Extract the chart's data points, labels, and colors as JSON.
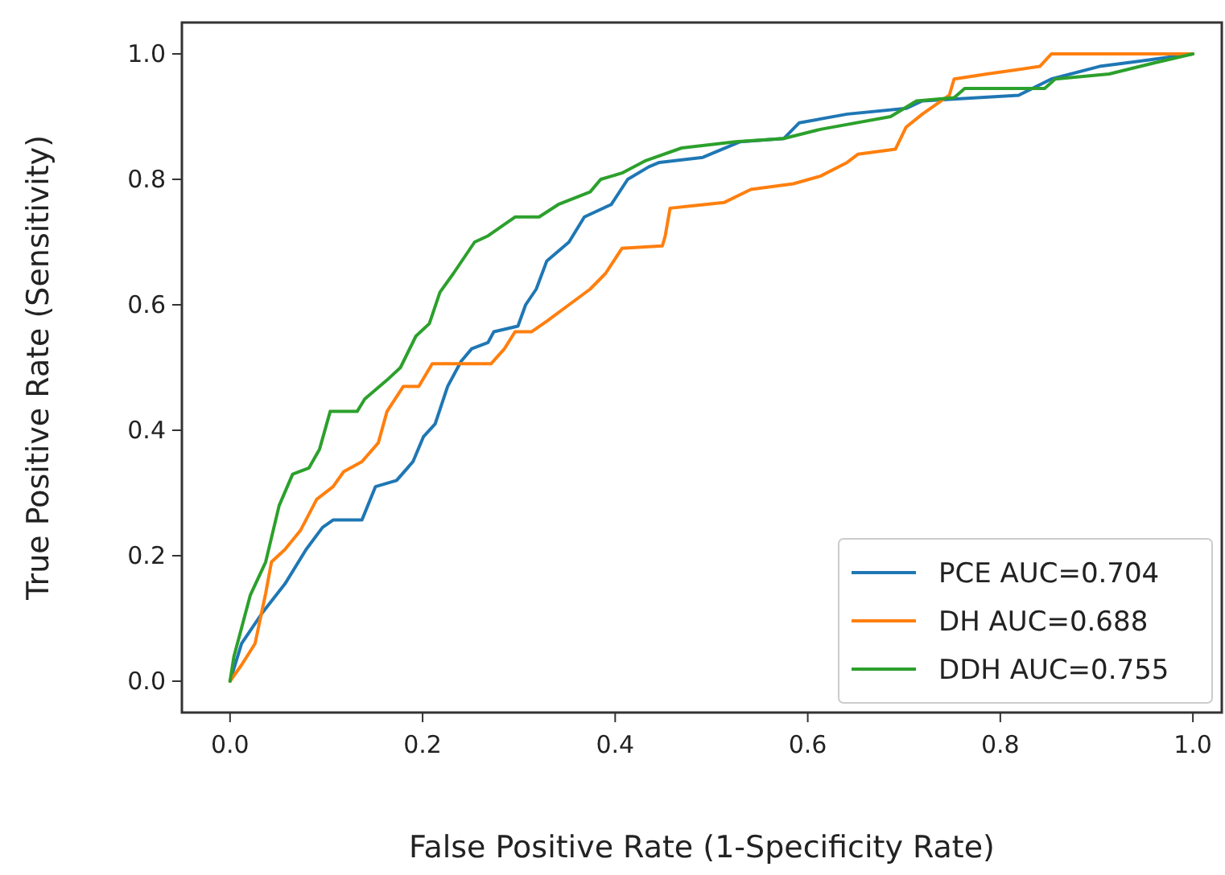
{
  "chart_data": {
    "type": "line",
    "xlabel": "False Positive Rate (1-Specificity Rate)",
    "ylabel": "True Positive Rate (Sensitivity)",
    "xlim": [
      -0.05,
      1.03
    ],
    "ylim": [
      -0.05,
      1.05
    ],
    "xticks": [
      {
        "value": 0,
        "label": "0.0"
      },
      {
        "value": 0.2,
        "label": "0.2"
      },
      {
        "value": 0.4,
        "label": "0.4"
      },
      {
        "value": 0.6,
        "label": "0.6"
      },
      {
        "value": 0.8,
        "label": "0.8"
      },
      {
        "value": 1,
        "label": "1.0"
      }
    ],
    "yticks": [
      {
        "value": 0,
        "label": "0.0"
      },
      {
        "value": 0.2,
        "label": "0.2"
      },
      {
        "value": 0.4,
        "label": "0.4"
      },
      {
        "value": 0.6,
        "label": "0.6"
      },
      {
        "value": 0.8,
        "label": "0.8"
      },
      {
        "value": 1,
        "label": "1.0"
      }
    ],
    "grid": false,
    "legend": "bottom right",
    "marker": "none",
    "line_style": "solid",
    "series": [
      {
        "name": "PCE AUC=0.704",
        "color": "#1f77b4",
        "x": [
          0,
          0.012,
          0.034,
          0.057,
          0.079,
          0.096,
          0.107,
          0.137,
          0.151,
          0.173,
          0.19,
          0.201,
          0.213,
          0.226,
          0.24,
          0.251,
          0.268,
          0.274,
          0.299,
          0.307,
          0.318,
          0.329,
          0.352,
          0.368,
          0.396,
          0.413,
          0.435,
          0.446,
          0.491,
          0.53,
          0.575,
          0.591,
          0.641,
          0.702,
          0.719,
          0.819,
          0.853,
          0.903,
          0.953,
          1
        ],
        "values": [
          0,
          0.06,
          0.11,
          0.155,
          0.21,
          0.245,
          0.257,
          0.257,
          0.31,
          0.32,
          0.35,
          0.39,
          0.41,
          0.47,
          0.51,
          0.53,
          0.54,
          0.557,
          0.566,
          0.6,
          0.625,
          0.67,
          0.7,
          0.74,
          0.76,
          0.8,
          0.82,
          0.827,
          0.835,
          0.86,
          0.865,
          0.89,
          0.904,
          0.913,
          0.925,
          0.934,
          0.96,
          0.98,
          0.99,
          1
        ]
      },
      {
        "name": "DH AUC=0.688",
        "color": "#ff7f0e",
        "x": [
          0,
          0.012,
          0.026,
          0.037,
          0.043,
          0.057,
          0.073,
          0.09,
          0.107,
          0.118,
          0.137,
          0.154,
          0.163,
          0.18,
          0.196,
          0.21,
          0.271,
          0.285,
          0.296,
          0.313,
          0.329,
          0.352,
          0.374,
          0.39,
          0.407,
          0.449,
          0.452,
          0.457,
          0.513,
          0.541,
          0.585,
          0.613,
          0.641,
          0.652,
          0.691,
          0.702,
          0.719,
          0.747,
          0.752,
          0.786,
          0.841,
          0.853,
          1
        ],
        "values": [
          0,
          0.026,
          0.06,
          0.14,
          0.19,
          0.21,
          0.24,
          0.29,
          0.31,
          0.334,
          0.35,
          0.38,
          0.43,
          0.47,
          0.47,
          0.506,
          0.506,
          0.53,
          0.557,
          0.557,
          0.574,
          0.6,
          0.625,
          0.65,
          0.69,
          0.694,
          0.71,
          0.754,
          0.763,
          0.784,
          0.793,
          0.805,
          0.827,
          0.84,
          0.848,
          0.883,
          0.904,
          0.934,
          0.96,
          0.968,
          0.98,
          1,
          1
        ]
      },
      {
        "name": "DDH AUC=0.755",
        "color": "#2ca02c",
        "x": [
          0,
          0.004,
          0.021,
          0.037,
          0.051,
          0.065,
          0.082,
          0.093,
          0.104,
          0.132,
          0.14,
          0.163,
          0.177,
          0.193,
          0.207,
          0.218,
          0.232,
          0.254,
          0.268,
          0.296,
          0.321,
          0.341,
          0.374,
          0.385,
          0.407,
          0.432,
          0.469,
          0.525,
          0.575,
          0.614,
          0.686,
          0.713,
          0.752,
          0.763,
          0.846,
          0.857,
          0.913,
          0.958,
          1
        ],
        "values": [
          0,
          0.039,
          0.137,
          0.19,
          0.28,
          0.33,
          0.34,
          0.37,
          0.43,
          0.43,
          0.45,
          0.48,
          0.5,
          0.55,
          0.57,
          0.62,
          0.65,
          0.7,
          0.71,
          0.74,
          0.74,
          0.76,
          0.78,
          0.8,
          0.81,
          0.83,
          0.85,
          0.86,
          0.865,
          0.88,
          0.9,
          0.925,
          0.93,
          0.945,
          0.945,
          0.96,
          0.968,
          0.985,
          1
        ]
      }
    ]
  }
}
